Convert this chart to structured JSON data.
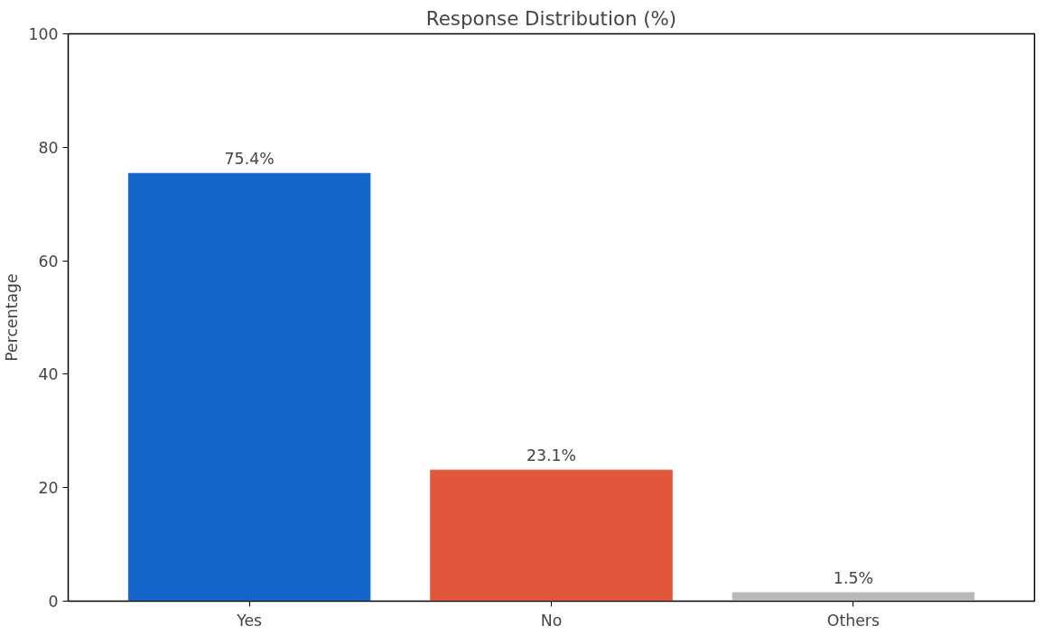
{
  "chart_data": {
    "type": "bar",
    "title": "Response Distribution (%)",
    "ylabel": "Percentage",
    "categories": [
      "Yes",
      "No",
      "Others"
    ],
    "values": [
      75.4,
      23.1,
      1.5
    ],
    "colors": [
      "#1666c9",
      "#e2563b",
      "#b8b8b8"
    ],
    "value_labels": [
      "75.4%",
      "23.1%",
      "1.5%"
    ],
    "ylim": [
      0,
      100
    ],
    "yticks": [
      0,
      20,
      40,
      60,
      80,
      100
    ],
    "grid": false
  }
}
